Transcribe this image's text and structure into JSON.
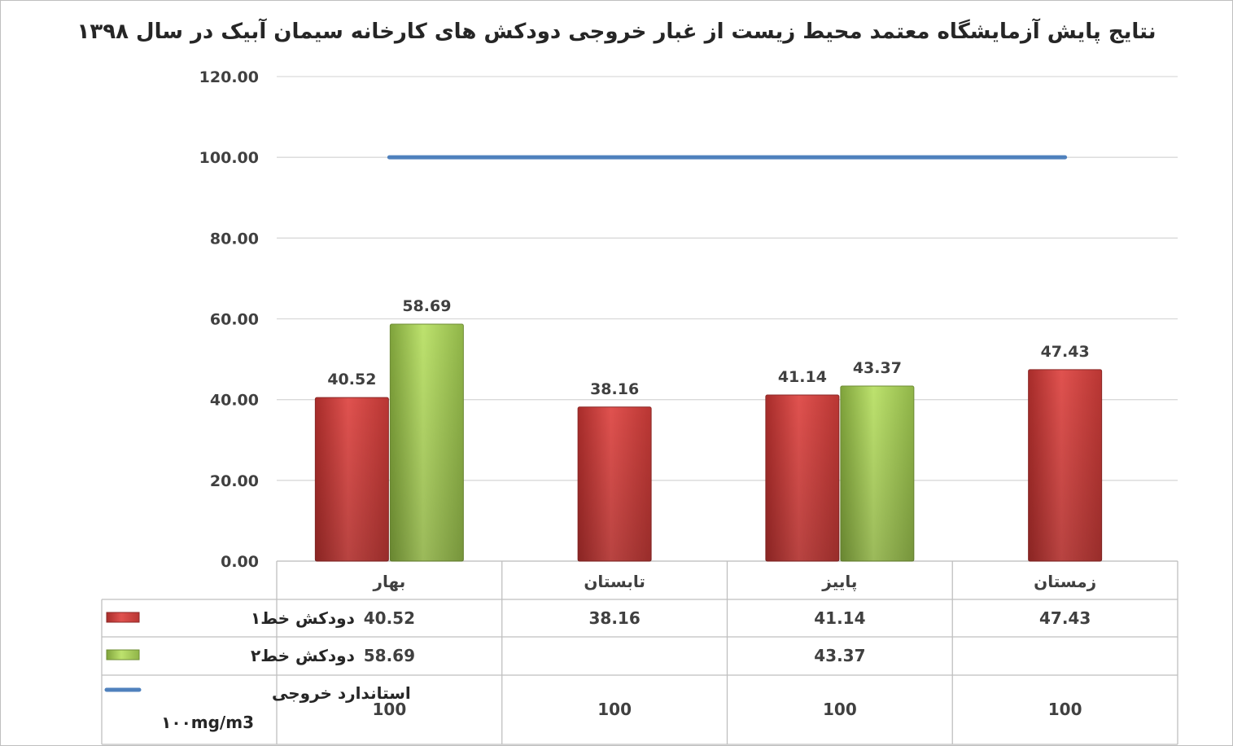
{
  "chart_data": {
    "type": "bar",
    "title": "نتایج پایش آزمایشگاه معتمد محیط زیست از غبار خروجی دودکش های کارخانه سیمان آبیک در سال ۱۳۹۸",
    "categories": [
      "بهار",
      "تابستان",
      "پاییز",
      "زمستان"
    ],
    "ylim": [
      0,
      120
    ],
    "yticks": [
      "0.00",
      "20.00",
      "40.00",
      "60.00",
      "80.00",
      "100.00",
      "120.00"
    ],
    "yticks_values": [
      0,
      20,
      40,
      60,
      80,
      100,
      120
    ],
    "grid": true,
    "series": [
      {
        "name": "دودکش خط۱",
        "type": "bar",
        "color": "#c0504d",
        "values": [
          40.52,
          38.16,
          41.14,
          47.43
        ],
        "labels": [
          "40.52",
          "38.16",
          "41.14",
          "47.43"
        ]
      },
      {
        "name": "دودکش خط۲",
        "type": "bar",
        "color": "#9bbb59",
        "values": [
          58.69,
          null,
          43.37,
          null
        ],
        "labels": [
          "58.69",
          "",
          "43.37",
          ""
        ]
      },
      {
        "name": "استاندارد خروجی",
        "name_line2": "۱۰۰mg/m3",
        "type": "line",
        "color": "#4f81bd",
        "values": [
          100,
          100,
          100,
          100
        ],
        "labels": [
          "100",
          "100",
          "100",
          "100"
        ]
      }
    ]
  }
}
